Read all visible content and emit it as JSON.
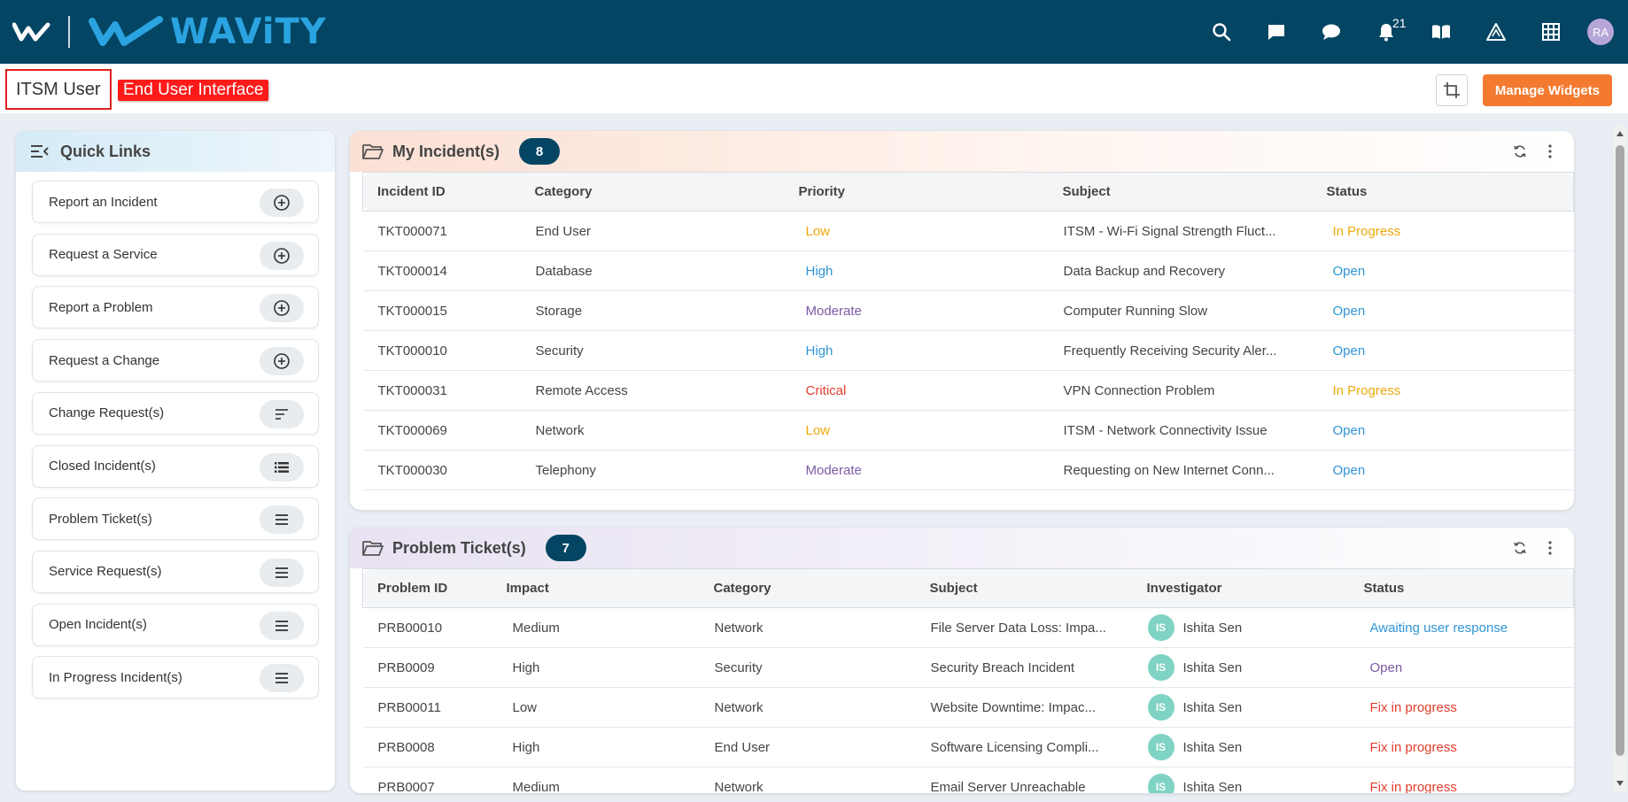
{
  "topbar": {
    "brand": "WAViTY",
    "notification_count": "21",
    "user_initials": "RA"
  },
  "subheader": {
    "role": "ITSM User",
    "interface_badge": "End User Interface",
    "manage_widgets": "Manage Widgets"
  },
  "quick_links": {
    "title": "Quick Links",
    "items": [
      {
        "label": "Report an Incident",
        "icon": "plus-circle-icon"
      },
      {
        "label": "Request a Service",
        "icon": "plus-circle-icon"
      },
      {
        "label": "Report a Problem",
        "icon": "plus-circle-icon"
      },
      {
        "label": "Request a Change",
        "icon": "plus-circle-icon"
      },
      {
        "label": "Change Request(s)",
        "icon": "sort-lines-icon"
      },
      {
        "label": "Closed Incident(s)",
        "icon": "list-icon"
      },
      {
        "label": "Problem Ticket(s)",
        "icon": "menu-icon"
      },
      {
        "label": "Service Request(s)",
        "icon": "menu-icon"
      },
      {
        "label": "Open Incident(s)",
        "icon": "menu-icon"
      },
      {
        "label": "In Progress Incident(s)",
        "icon": "menu-icon"
      }
    ]
  },
  "incidents": {
    "title": "My Incident(s)",
    "count": "8",
    "columns": [
      "Incident ID",
      "Category",
      "Priority",
      "Subject",
      "Status"
    ],
    "rows": [
      {
        "id": "TKT000071",
        "category": "End User",
        "priority": "Low",
        "subject": "ITSM - Wi-Fi Signal Strength Fluct...",
        "status": "In Progress"
      },
      {
        "id": "TKT000014",
        "category": "Database",
        "priority": "High",
        "subject": "Data Backup and Recovery",
        "status": "Open"
      },
      {
        "id": "TKT000015",
        "category": "Storage",
        "priority": "Moderate",
        "subject": "Computer Running Slow",
        "status": "Open"
      },
      {
        "id": "TKT000010",
        "category": "Security",
        "priority": "High",
        "subject": "Frequently Receiving Security Aler...",
        "status": "Open"
      },
      {
        "id": "TKT000031",
        "category": "Remote Access",
        "priority": "Critical",
        "subject": "VPN Connection Problem",
        "status": "In Progress"
      },
      {
        "id": "TKT000069",
        "category": "Network",
        "priority": "Low",
        "subject": "ITSM - Network Connectivity Issue",
        "status": "Open"
      },
      {
        "id": "TKT000030",
        "category": "Telephony",
        "priority": "Moderate",
        "subject": "Requesting on New Internet Conn...",
        "status": "Open"
      }
    ]
  },
  "problems": {
    "title": "Problem Ticket(s)",
    "count": "7",
    "columns": [
      "Problem ID",
      "Impact",
      "Category",
      "Subject",
      "Investigator",
      "Status"
    ],
    "rows": [
      {
        "id": "PRB00010",
        "impact": "Medium",
        "category": "Network",
        "subject": "File Server Data Loss: Impa...",
        "initials": "IS",
        "investigator": "Ishita Sen",
        "status": "Awaiting user response"
      },
      {
        "id": "PRB0009",
        "impact": "High",
        "category": "Security",
        "subject": "Security Breach Incident",
        "initials": "IS",
        "investigator": "Ishita Sen",
        "status": "Open"
      },
      {
        "id": "PRB00011",
        "impact": "Low",
        "category": "Network",
        "subject": "Website Downtime: Impac...",
        "initials": "IS",
        "investigator": "Ishita Sen",
        "status": "Fix in progress"
      },
      {
        "id": "PRB0008",
        "impact": "High",
        "category": "End User",
        "subject": "Software Licensing Compli...",
        "initials": "IS",
        "investigator": "Ishita Sen",
        "status": "Fix in progress"
      },
      {
        "id": "PRB0007",
        "impact": "Medium",
        "category": "Network",
        "subject": "Email Server Unreachable",
        "initials": "IS",
        "investigator": "Ishita Sen",
        "status": "Fix in progress"
      }
    ]
  }
}
